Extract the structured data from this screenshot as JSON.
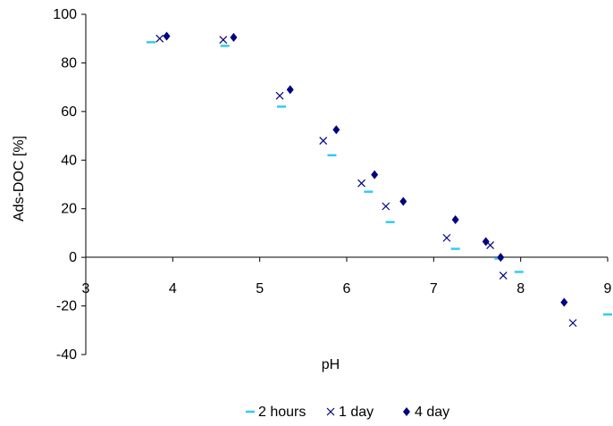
{
  "chart_data": {
    "type": "scatter",
    "title": "",
    "xlabel": "pH",
    "ylabel": "Ads-DOC [%]",
    "xlim": [
      3,
      9
    ],
    "ylim": [
      -40,
      100
    ],
    "xticks": [
      3,
      4,
      5,
      6,
      7,
      8,
      9
    ],
    "yticks": [
      -40,
      -20,
      0,
      20,
      40,
      60,
      80,
      100
    ],
    "grid": false,
    "legend_position": "bottom",
    "series": [
      {
        "name": "2 hours",
        "marker": "dash",
        "color": "#33ccee",
        "points": [
          {
            "x": 3.75,
            "y": 88.5
          },
          {
            "x": 4.6,
            "y": 87
          },
          {
            "x": 5.25,
            "y": 62
          },
          {
            "x": 5.83,
            "y": 42
          },
          {
            "x": 6.25,
            "y": 27
          },
          {
            "x": 6.5,
            "y": 14.5
          },
          {
            "x": 7.25,
            "y": 3.5
          },
          {
            "x": 7.75,
            "y": -0.5
          },
          {
            "x": 7.98,
            "y": -6
          },
          {
            "x": 9.0,
            "y": -23.5
          }
        ]
      },
      {
        "name": "1 day",
        "marker": "x",
        "color": "#000080",
        "points": [
          {
            "x": 3.85,
            "y": 90
          },
          {
            "x": 4.58,
            "y": 89.5
          },
          {
            "x": 5.23,
            "y": 66.5
          },
          {
            "x": 5.73,
            "y": 48
          },
          {
            "x": 6.17,
            "y": 30.5
          },
          {
            "x": 6.45,
            "y": 21
          },
          {
            "x": 7.15,
            "y": 8
          },
          {
            "x": 7.65,
            "y": 5
          },
          {
            "x": 7.8,
            "y": -7.5
          },
          {
            "x": 8.6,
            "y": -27
          }
        ]
      },
      {
        "name": "4 day",
        "marker": "diamond",
        "color": "#000080",
        "points": [
          {
            "x": 3.93,
            "y": 91
          },
          {
            "x": 4.7,
            "y": 90.5
          },
          {
            "x": 5.35,
            "y": 69
          },
          {
            "x": 5.88,
            "y": 52.5
          },
          {
            "x": 6.32,
            "y": 34
          },
          {
            "x": 6.65,
            "y": 23
          },
          {
            "x": 7.25,
            "y": 15.5
          },
          {
            "x": 7.6,
            "y": 6.5
          },
          {
            "x": 7.77,
            "y": 0
          },
          {
            "x": 8.5,
            "y": -18.5
          }
        ]
      }
    ]
  }
}
